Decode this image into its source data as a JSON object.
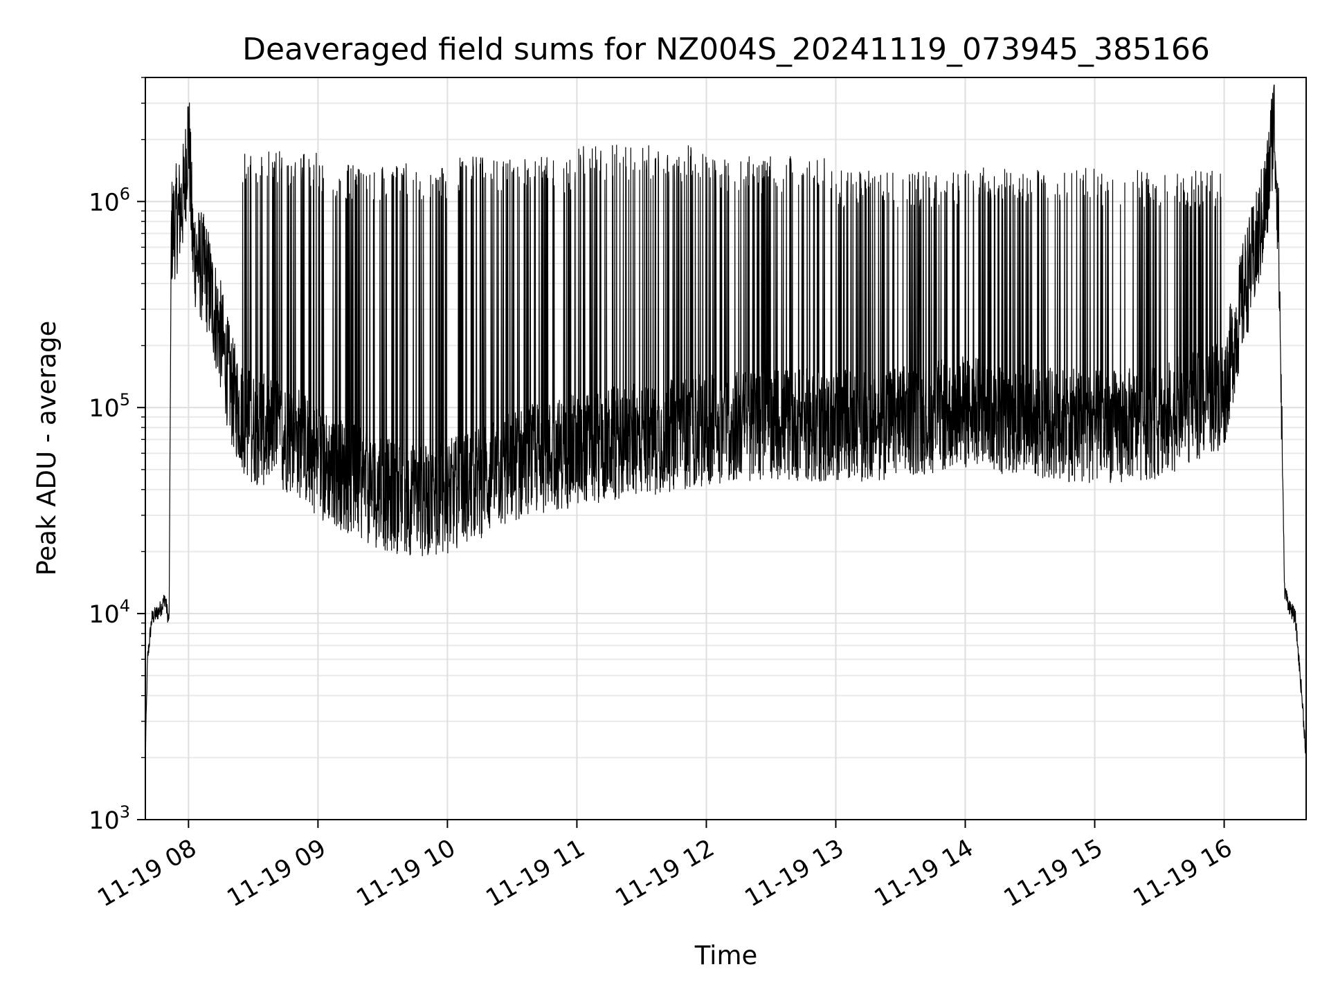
{
  "chart_data": {
    "type": "line",
    "title": "Deaveraged field sums for NZ004S_20241119_073945_385166",
    "xlabel": "Time",
    "ylabel": "Peak ADU - average",
    "y_scale": "log",
    "grid": true,
    "line_color": "#000000",
    "x_range": [
      "2024-11-19 07:40",
      "2024-11-19 16:38"
    ],
    "ylim": [
      1000,
      4000000
    ],
    "x_ticks": [
      {
        "t": "2024-11-19 08:00",
        "label": "11-19 08"
      },
      {
        "t": "2024-11-19 09:00",
        "label": "11-19 09"
      },
      {
        "t": "2024-11-19 10:00",
        "label": "11-19 10"
      },
      {
        "t": "2024-11-19 11:00",
        "label": "11-19 11"
      },
      {
        "t": "2024-11-19 12:00",
        "label": "11-19 12"
      },
      {
        "t": "2024-11-19 13:00",
        "label": "11-19 13"
      },
      {
        "t": "2024-11-19 14:00",
        "label": "11-19 14"
      },
      {
        "t": "2024-11-19 15:00",
        "label": "11-19 15"
      },
      {
        "t": "2024-11-19 16:00",
        "label": "11-19 16"
      }
    ],
    "y_ticks": [
      {
        "value": 1000,
        "base": "10",
        "exp": "3"
      },
      {
        "value": 10000,
        "base": "10",
        "exp": "4"
      },
      {
        "value": 100000,
        "base": "10",
        "exp": "5"
      },
      {
        "value": 1000000,
        "base": "10",
        "exp": "6"
      }
    ],
    "series": [
      {
        "points": [
          [
            "2024-11-19 07:40",
            2000
          ],
          [
            "2024-11-19 07:41",
            6000
          ],
          [
            "2024-11-19 07:43",
            9500
          ],
          [
            "2024-11-19 07:46",
            10200
          ],
          [
            "2024-11-19 07:48",
            11000
          ],
          [
            "2024-11-19 07:49",
            12000
          ],
          [
            "2024-11-19 07:51",
            9000
          ],
          [
            "2024-11-19 07:52",
            700000
          ],
          [
            "2024-11-19 07:54",
            800000
          ],
          [
            "2024-11-19 07:56",
            900000
          ],
          [
            "2024-11-19 07:58",
            1100000
          ],
          [
            "2024-11-19 08:00",
            2300000
          ],
          [
            "2024-11-19 08:02",
            600000
          ],
          [
            "2024-11-19 08:05",
            500000
          ],
          [
            "2024-11-19 08:08",
            450000
          ],
          [
            "2024-11-19 08:12",
            300000
          ],
          [
            "2024-11-19 08:15",
            220000
          ],
          [
            "2024-11-19 08:18",
            150000
          ],
          [
            "2024-11-19 08:20",
            120000
          ],
          [
            "2024-11-19 08:25",
            90000
          ],
          [
            "2024-11-19 08:30",
            80000
          ],
          [
            "2024-11-19 08:40",
            75000
          ],
          [
            "2024-11-19 08:50",
            70000
          ],
          [
            "2024-11-19 09:00",
            55000
          ],
          [
            "2024-11-19 09:10",
            48000
          ],
          [
            "2024-11-19 09:20",
            42000
          ],
          [
            "2024-11-19 09:30",
            38000
          ],
          [
            "2024-11-19 09:40",
            36000
          ],
          [
            "2024-11-19 09:50",
            35000
          ],
          [
            "2024-11-19 10:00",
            37000
          ],
          [
            "2024-11-19 10:10",
            42000
          ],
          [
            "2024-11-19 10:20",
            45000
          ],
          [
            "2024-11-19 10:30",
            52000
          ],
          [
            "2024-11-19 10:45",
            58000
          ],
          [
            "2024-11-19 11:00",
            62000
          ],
          [
            "2024-11-19 11:20",
            68000
          ],
          [
            "2024-11-19 11:40",
            72000
          ],
          [
            "2024-11-19 12:00",
            78000
          ],
          [
            "2024-11-19 12:30",
            85000
          ],
          [
            "2024-11-19 13:00",
            80000
          ],
          [
            "2024-11-19 13:30",
            85000
          ],
          [
            "2024-11-19 14:00",
            95000
          ],
          [
            "2024-11-19 14:30",
            85000
          ],
          [
            "2024-11-19 15:00",
            80000
          ],
          [
            "2024-11-19 15:30",
            85000
          ],
          [
            "2024-11-19 16:00",
            120000
          ],
          [
            "2024-11-19 16:10",
            400000
          ],
          [
            "2024-11-19 16:15",
            600000
          ],
          [
            "2024-11-19 16:20",
            1100000
          ],
          [
            "2024-11-19 16:23",
            2600000
          ],
          [
            "2024-11-19 16:25",
            900000
          ],
          [
            "2024-11-19 16:28",
            13000
          ],
          [
            "2024-11-19 16:30",
            11000
          ],
          [
            "2024-11-19 16:33",
            9500
          ],
          [
            "2024-11-19 16:36",
            4000
          ],
          [
            "2024-11-19 16:38",
            2000
          ]
        ],
        "spike_bands": [
          {
            "from": "2024-11-19 08:25",
            "to": "2024-11-19 09:00",
            "peak": 1500000
          },
          {
            "from": "2024-11-19 09:00",
            "to": "2024-11-19 10:00",
            "peak": 1300000
          },
          {
            "from": "2024-11-19 10:05",
            "to": "2024-11-19 11:00",
            "peak": 1400000
          },
          {
            "from": "2024-11-19 11:00",
            "to": "2024-11-19 12:00",
            "peak": 1600000
          },
          {
            "from": "2024-11-19 12:00",
            "to": "2024-11-19 13:00",
            "peak": 1400000
          },
          {
            "from": "2024-11-19 13:00",
            "to": "2024-11-19 14:00",
            "peak": 1200000
          },
          {
            "from": "2024-11-19 14:00",
            "to": "2024-11-19 15:00",
            "peak": 1250000
          },
          {
            "from": "2024-11-19 15:00",
            "to": "2024-11-19 16:00",
            "peak": 1200000
          }
        ]
      }
    ]
  }
}
